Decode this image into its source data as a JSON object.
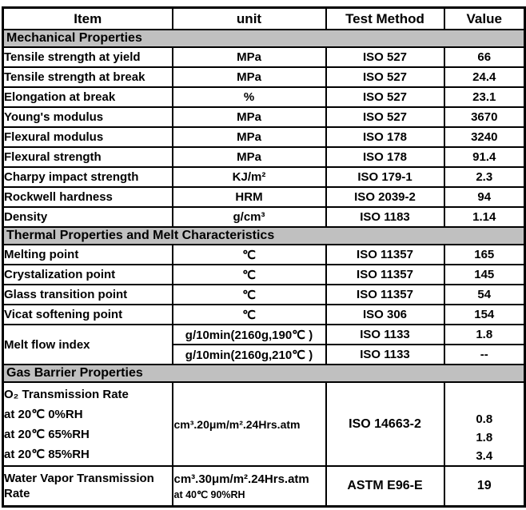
{
  "colors": {
    "section_bg": "#c0c0c0",
    "border": "#000000",
    "text": "#000000",
    "background": "#ffffff"
  },
  "header": {
    "columns": [
      "Item",
      "unit",
      "Test Method",
      "Value"
    ]
  },
  "sections": {
    "mechanical": "Mechanical Properties",
    "thermal": "Thermal Properties and Melt Characteristics",
    "gas": "Gas Barrier Properties"
  },
  "mechanical_rows": [
    {
      "item": "Tensile strength at yield",
      "unit": "MPa",
      "method": "ISO 527",
      "value": "66"
    },
    {
      "item": "Tensile strength at break",
      "unit": "MPa",
      "method": "ISO 527",
      "value": "24.4"
    },
    {
      "item": "Elongation at break",
      "unit": "%",
      "method": "ISO 527",
      "value": "23.1"
    },
    {
      "item": "Young's modulus",
      "unit": "MPa",
      "method": "ISO 527",
      "value": "3670"
    },
    {
      "item": "Flexural modulus",
      "unit": "MPa",
      "method": "ISO 178",
      "value": "3240"
    },
    {
      "item": "Flexural strength",
      "unit": "MPa",
      "method": "ISO 178",
      "value": "91.4"
    },
    {
      "item": "Charpy impact strength",
      "unit": "KJ/m²",
      "method": "ISO 179-1",
      "value": "2.3"
    },
    {
      "item": "Rockwell hardness",
      "unit": "HRM",
      "method": "ISO 2039-2",
      "value": "94"
    },
    {
      "item": "Density",
      "unit": "g/cm³",
      "method": "ISO 1183",
      "value": "1.14"
    }
  ],
  "thermal_rows": [
    {
      "item": "Melting point",
      "unit": "℃",
      "method": "ISO 11357",
      "value": "165"
    },
    {
      "item": "Crystalization point",
      "unit": "℃",
      "method": "ISO 11357",
      "value": "145"
    },
    {
      "item": "Glass transition point",
      "unit": "℃",
      "method": "ISO 11357",
      "value": "54"
    },
    {
      "item": "Vicat softening point",
      "unit": "℃",
      "method": "ISO 306",
      "value": "154"
    }
  ],
  "melt_flow": {
    "item": "Melt flow index",
    "rows": [
      {
        "unit": "g/10min(2160g,190℃ )",
        "method": "ISO 1133",
        "value": "1.8"
      },
      {
        "unit": "g/10min(2160g,210℃ )",
        "method": "ISO 1133",
        "value": "--"
      }
    ]
  },
  "gas_barrier": {
    "o2": {
      "title": "O₂ Transmission Rate",
      "conditions": [
        "at 20℃  0%RH",
        "at 20℃  65%RH",
        "at 20℃  85%RH"
      ],
      "unit": "cm³.20μm/m².24Hrs.atm",
      "method": "ISO 14663-2",
      "values": [
        "0.8",
        "1.8",
        "3.4"
      ]
    },
    "water_vapor": {
      "title": "Water Vapor Transmission Rate",
      "unit_line1": "cm³.30μm/m².24Hrs.atm",
      "unit_line2": "at 40℃ 90%RH",
      "method": "ASTM E96-E",
      "value": "19"
    }
  }
}
